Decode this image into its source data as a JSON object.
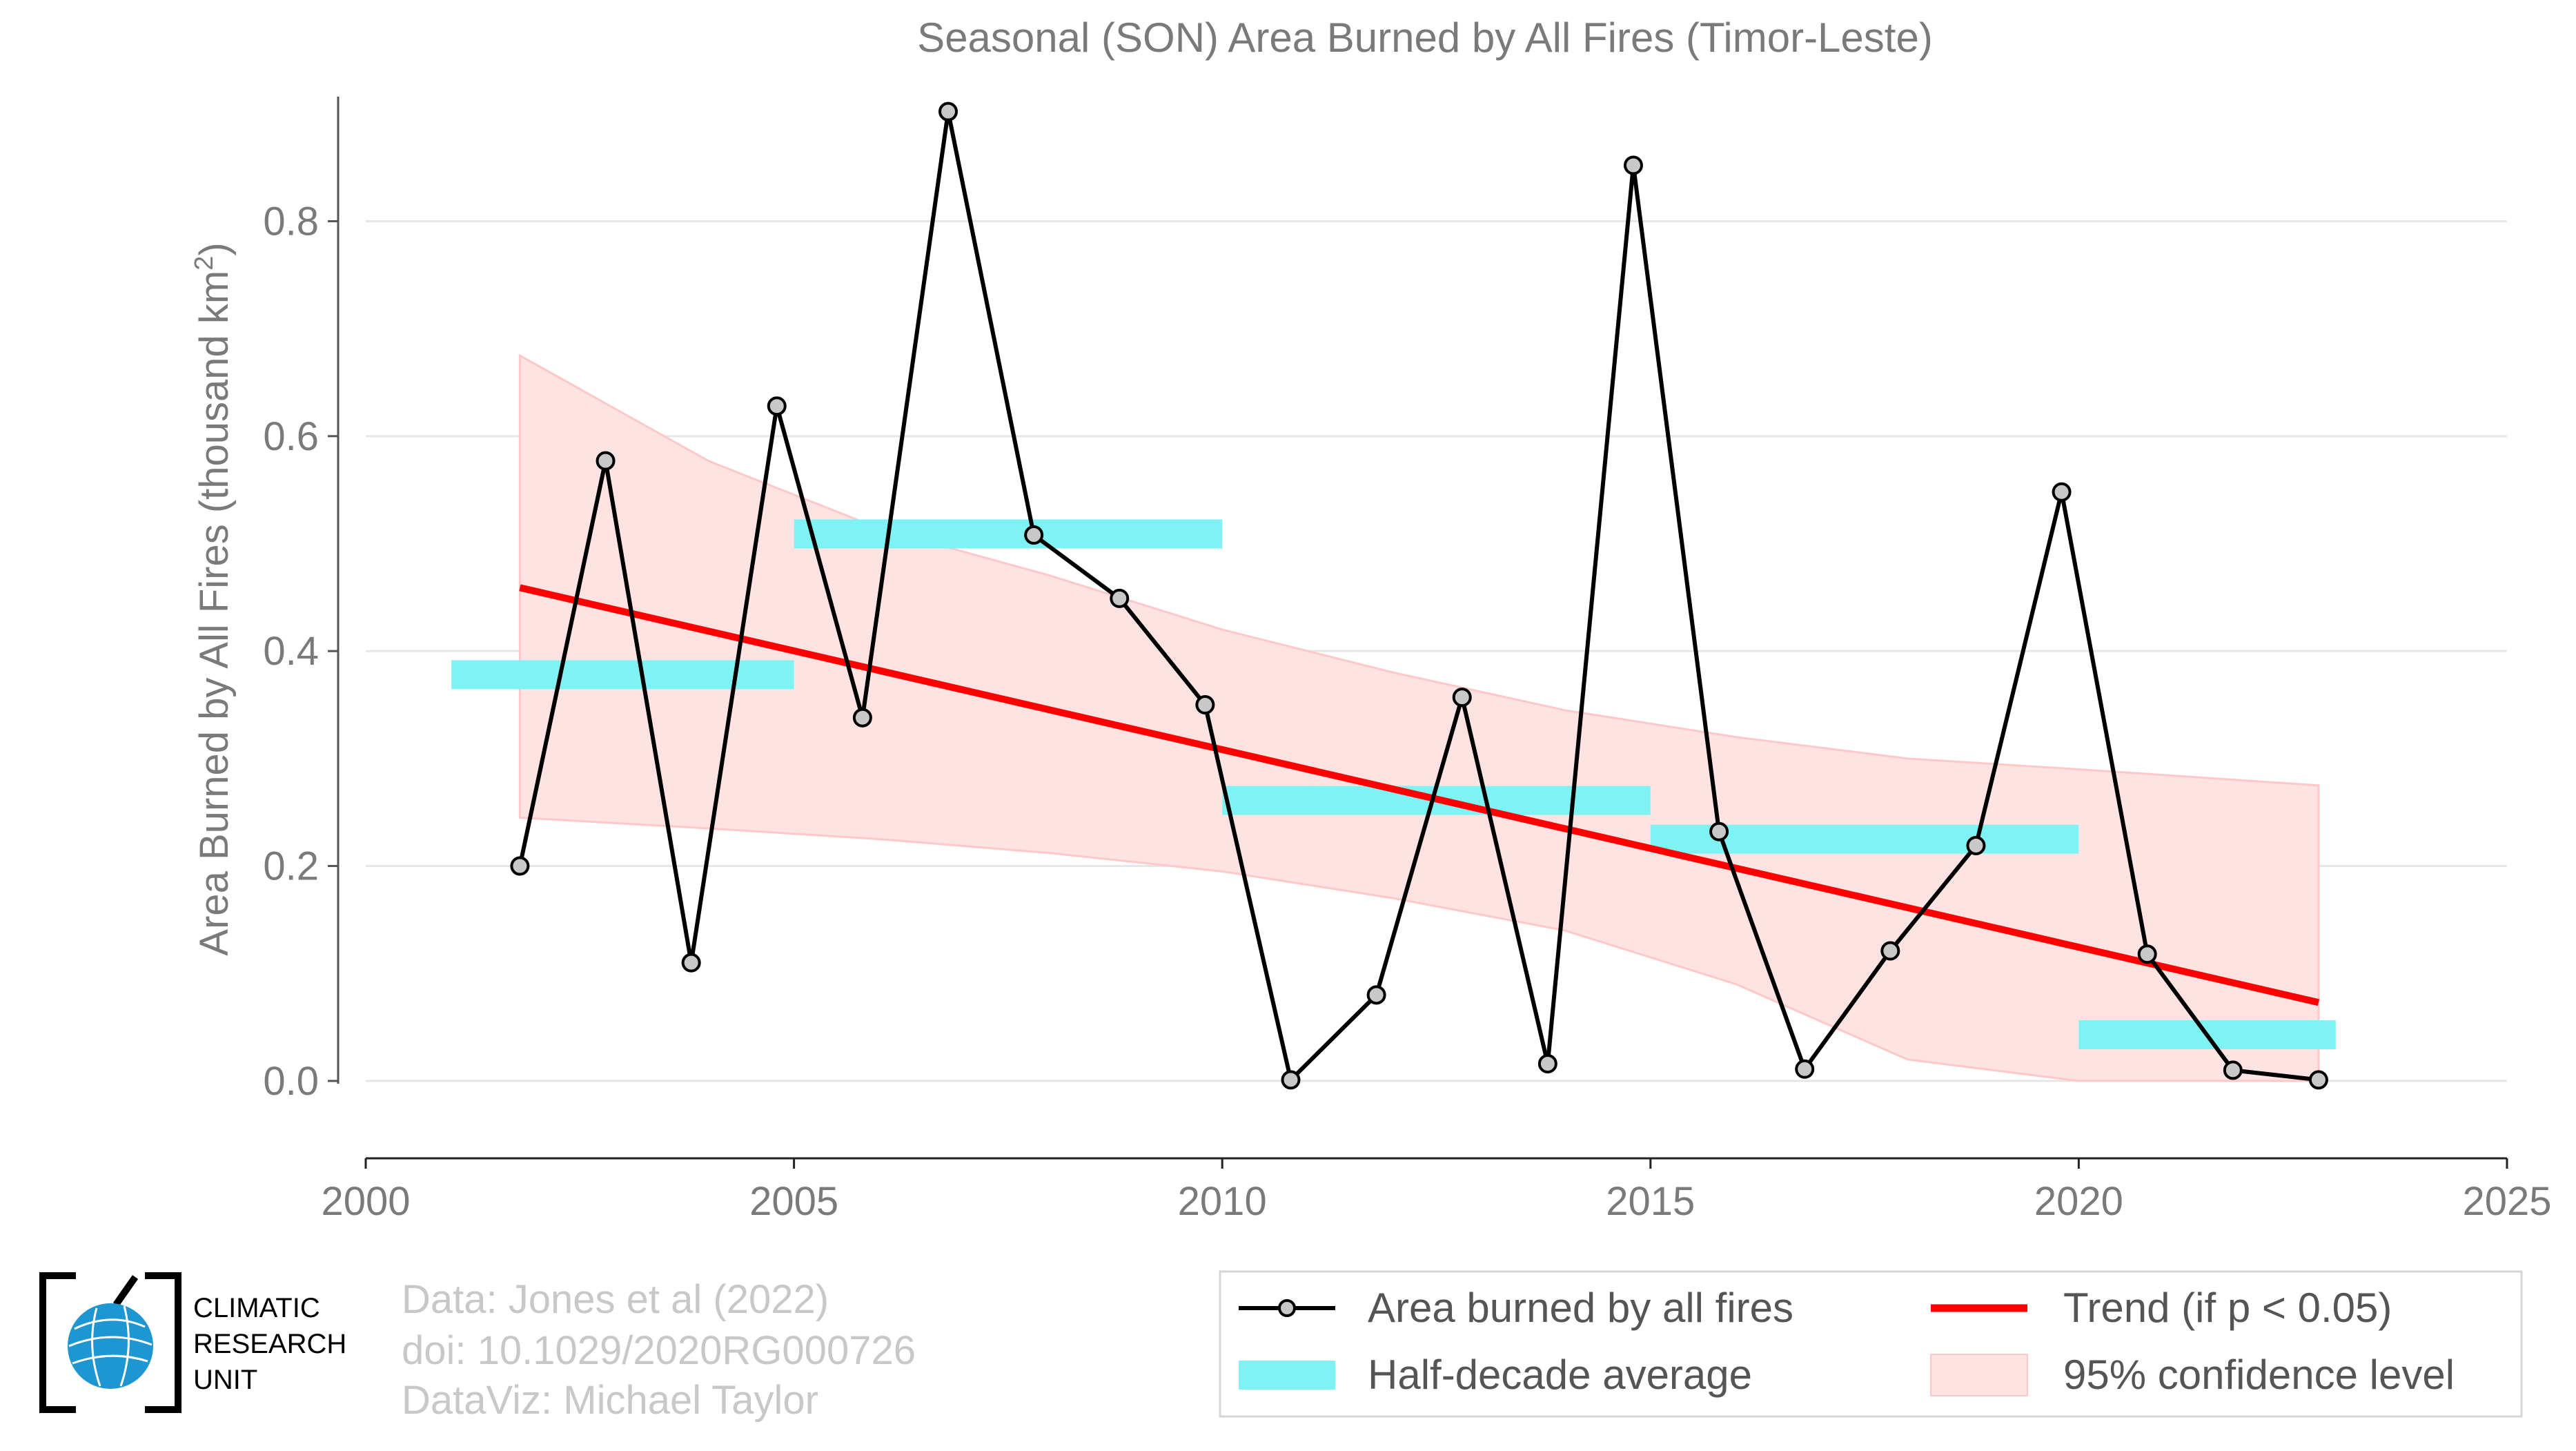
{
  "chart_data": {
    "type": "line",
    "title": "Seasonal (SON) Area Burned by All Fires (Timor-Leste)",
    "xlabel": "",
    "ylabel": "Area Burned by All Fires (thousand km",
    "ylabel_sup": "2",
    "ylabel_close": ")",
    "xlim": [
      2000,
      2025
    ],
    "ylim": [
      -0.072,
      0.905
    ],
    "xticks": [
      2000,
      2005,
      2010,
      2015,
      2020,
      2025
    ],
    "xtick_labels": [
      "2000",
      "2005",
      "2010",
      "2015",
      "2020",
      "2025"
    ],
    "yticks": [
      0.0,
      0.2,
      0.4,
      0.6,
      0.8
    ],
    "ytick_labels": [
      "0.0",
      "0.2",
      "0.4",
      "0.6",
      "0.8"
    ],
    "grid": "horizontal",
    "legend_position": "bottom-right",
    "series": [
      {
        "name": "Area burned by all fires",
        "kind": "line-markers",
        "color": "#000000",
        "marker_fill": "#c8c8c8",
        "x": [
          2001.8,
          2002.8,
          2003.8,
          2004.8,
          2005.8,
          2006.8,
          2007.8,
          2008.8,
          2009.8,
          2010.8,
          2011.8,
          2012.8,
          2013.8,
          2014.8,
          2015.8,
          2016.8,
          2017.8,
          2018.8,
          2019.8,
          2020.8,
          2021.8,
          2022.8
        ],
        "y": [
          0.2,
          0.577,
          0.11,
          0.628,
          0.338,
          0.902,
          0.508,
          0.449,
          0.35,
          0.001,
          0.08,
          0.357,
          0.016,
          0.852,
          0.232,
          0.011,
          0.121,
          0.219,
          0.548,
          0.118,
          0.01,
          0.001
        ]
      },
      {
        "name": "Half-decade average",
        "kind": "segments",
        "color": "#7ff3f3",
        "segments": [
          {
            "x0": 2001.0,
            "x1": 2005.0,
            "y": 0.378
          },
          {
            "x0": 2005.0,
            "x1": 2010.0,
            "y": 0.509
          },
          {
            "x0": 2010.0,
            "x1": 2015.0,
            "y": 0.261
          },
          {
            "x0": 2015.0,
            "x1": 2020.0,
            "y": 0.225
          },
          {
            "x0": 2020.0,
            "x1": 2023.0,
            "y": 0.043
          }
        ]
      },
      {
        "name": "Trend (if p < 0.05)",
        "kind": "trend",
        "color": "#ff0000",
        "x": [
          2001.8,
          2022.8
        ],
        "y": [
          0.459,
          0.073
        ]
      },
      {
        "name": "95% confidence level",
        "kind": "band",
        "color": "#ffe3e3",
        "edge": "#ffc8c8",
        "x": [
          2001.8,
          2004.0,
          2006.0,
          2008.0,
          2010.0,
          2012.0,
          2014.0,
          2016.0,
          2018.0,
          2020.0,
          2022.8
        ],
        "upper": [
          0.675,
          0.577,
          0.514,
          0.47,
          0.42,
          0.38,
          0.345,
          0.32,
          0.3,
          0.29,
          0.275
        ],
        "lower": [
          0.245,
          0.235,
          0.225,
          0.212,
          0.195,
          0.17,
          0.14,
          0.09,
          0.02,
          -0.04,
          -0.13
        ]
      }
    ]
  },
  "legend": {
    "items": [
      {
        "label": "Area burned by all fires",
        "kind": "line-marker"
      },
      {
        "label": "Trend (if p < 0.05)",
        "kind": "line-red"
      },
      {
        "label": "Half-decade average",
        "kind": "bar-cyan"
      },
      {
        "label": "95% confidence level",
        "kind": "box-pink"
      }
    ]
  },
  "credits": {
    "line1": "Data: Jones et al (2022)",
    "line2": "doi: 10.1029/2020RG000726",
    "line3": "DataViz: Michael Taylor"
  },
  "logo": {
    "line1": "CLIMATIC",
    "line2": "RESEARCH",
    "line3": "UNIT",
    "globe_color": "#1e96d2",
    "icon": "globe-icon"
  }
}
